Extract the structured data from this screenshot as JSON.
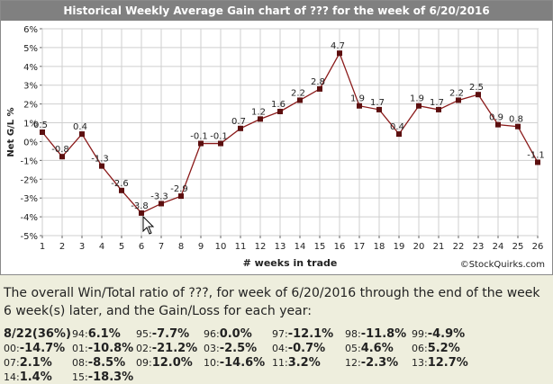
{
  "chart_title": "Historical Weekly Average Gain chart of ??? for the week of 6/20/2016",
  "copyright": "©StockQuirks.com",
  "chart_data": {
    "type": "line",
    "title": "Historical Weekly Average Gain chart of ??? for the week of 6/20/2016",
    "xlabel": "# weeks in trade",
    "ylabel": "Net G/L %",
    "x": [
      1,
      2,
      3,
      4,
      5,
      6,
      7,
      8,
      9,
      10,
      11,
      12,
      13,
      14,
      15,
      16,
      17,
      18,
      19,
      20,
      21,
      22,
      23,
      24,
      25,
      26
    ],
    "values": [
      0.5,
      -0.8,
      0.4,
      -1.3,
      -2.6,
      -3.8,
      -3.3,
      -2.9,
      -0.1,
      -0.1,
      0.7,
      1.2,
      1.6,
      2.2,
      2.8,
      4.7,
      1.9,
      1.7,
      0.4,
      1.9,
      1.7,
      2.2,
      2.5,
      0.9,
      0.8,
      -1.1
    ],
    "data_labels": [
      "0.5",
      "-0.8",
      "0.4",
      "-1.3",
      "-2.6",
      "-3.8",
      "-3.3",
      "-2.9",
      "-0.1",
      "-0.1",
      "0.7",
      "1.2",
      "1.6",
      "2.2",
      "2.8",
      "4.7",
      "1.9",
      "1.7",
      "0.4",
      "1.9",
      "1.7",
      "2.2",
      "2.5",
      "0.9",
      "0.8",
      "-1.1"
    ],
    "y_ticks": [
      "6%",
      "5%",
      "4%",
      "3%",
      "2%",
      "1%",
      "0%",
      "-1%",
      "-2%",
      "-3%",
      "-4%",
      "-5%"
    ],
    "x_ticks": [
      "1",
      "2",
      "3",
      "4",
      "5",
      "6",
      "7",
      "8",
      "9",
      "10",
      "11",
      "12",
      "13",
      "14",
      "15",
      "16",
      "17",
      "18",
      "19",
      "20",
      "21",
      "22",
      "23",
      "24",
      "25",
      "26"
    ],
    "ylim": [
      -5,
      6
    ],
    "xlim": [
      1,
      26
    ],
    "grid": true,
    "line_color": "#8b1a1a",
    "marker_color": "#5c0f0f"
  },
  "summary": {
    "line1": "The overall Win/Total ratio of ???, for week of 6/20/2016 through the end of the week",
    "line2": "6 week(s) later, and the Gain/Loss for each year:",
    "ratio": "8/22",
    "ratio_pct": "(36%)",
    "years": [
      [
        {
          "y": "94:",
          "v": "6.1%"
        },
        {
          "y": "95:",
          "v": "-7.7%"
        },
        {
          "y": "96:",
          "v": "0.0%"
        },
        {
          "y": "97:",
          "v": "-12.1%"
        },
        {
          "y": "98:",
          "v": "-11.8%"
        },
        {
          "y": "99:",
          "v": "-4.9%"
        }
      ],
      [
        {
          "y": "00:",
          "v": "-14.7%"
        },
        {
          "y": "01:",
          "v": "-10.8%"
        },
        {
          "y": "02:",
          "v": "-21.2%"
        },
        {
          "y": "03:",
          "v": "-2.5%"
        },
        {
          "y": "04:",
          "v": "-0.7%"
        },
        {
          "y": "05:",
          "v": "4.6%"
        },
        {
          "y": "06:",
          "v": "5.2%"
        }
      ],
      [
        {
          "y": "07:",
          "v": "2.1%"
        },
        {
          "y": "08:",
          "v": "-8.5%"
        },
        {
          "y": "09:",
          "v": "12.0%"
        },
        {
          "y": "10:",
          "v": "-14.6%"
        },
        {
          "y": "11:",
          "v": "3.2%"
        },
        {
          "y": "12:",
          "v": "-2.3%"
        },
        {
          "y": "13:",
          "v": "12.7%"
        }
      ],
      [
        {
          "y": "14:",
          "v": "1.4%"
        },
        {
          "y": "15:",
          "v": "-18.3%"
        }
      ]
    ]
  }
}
